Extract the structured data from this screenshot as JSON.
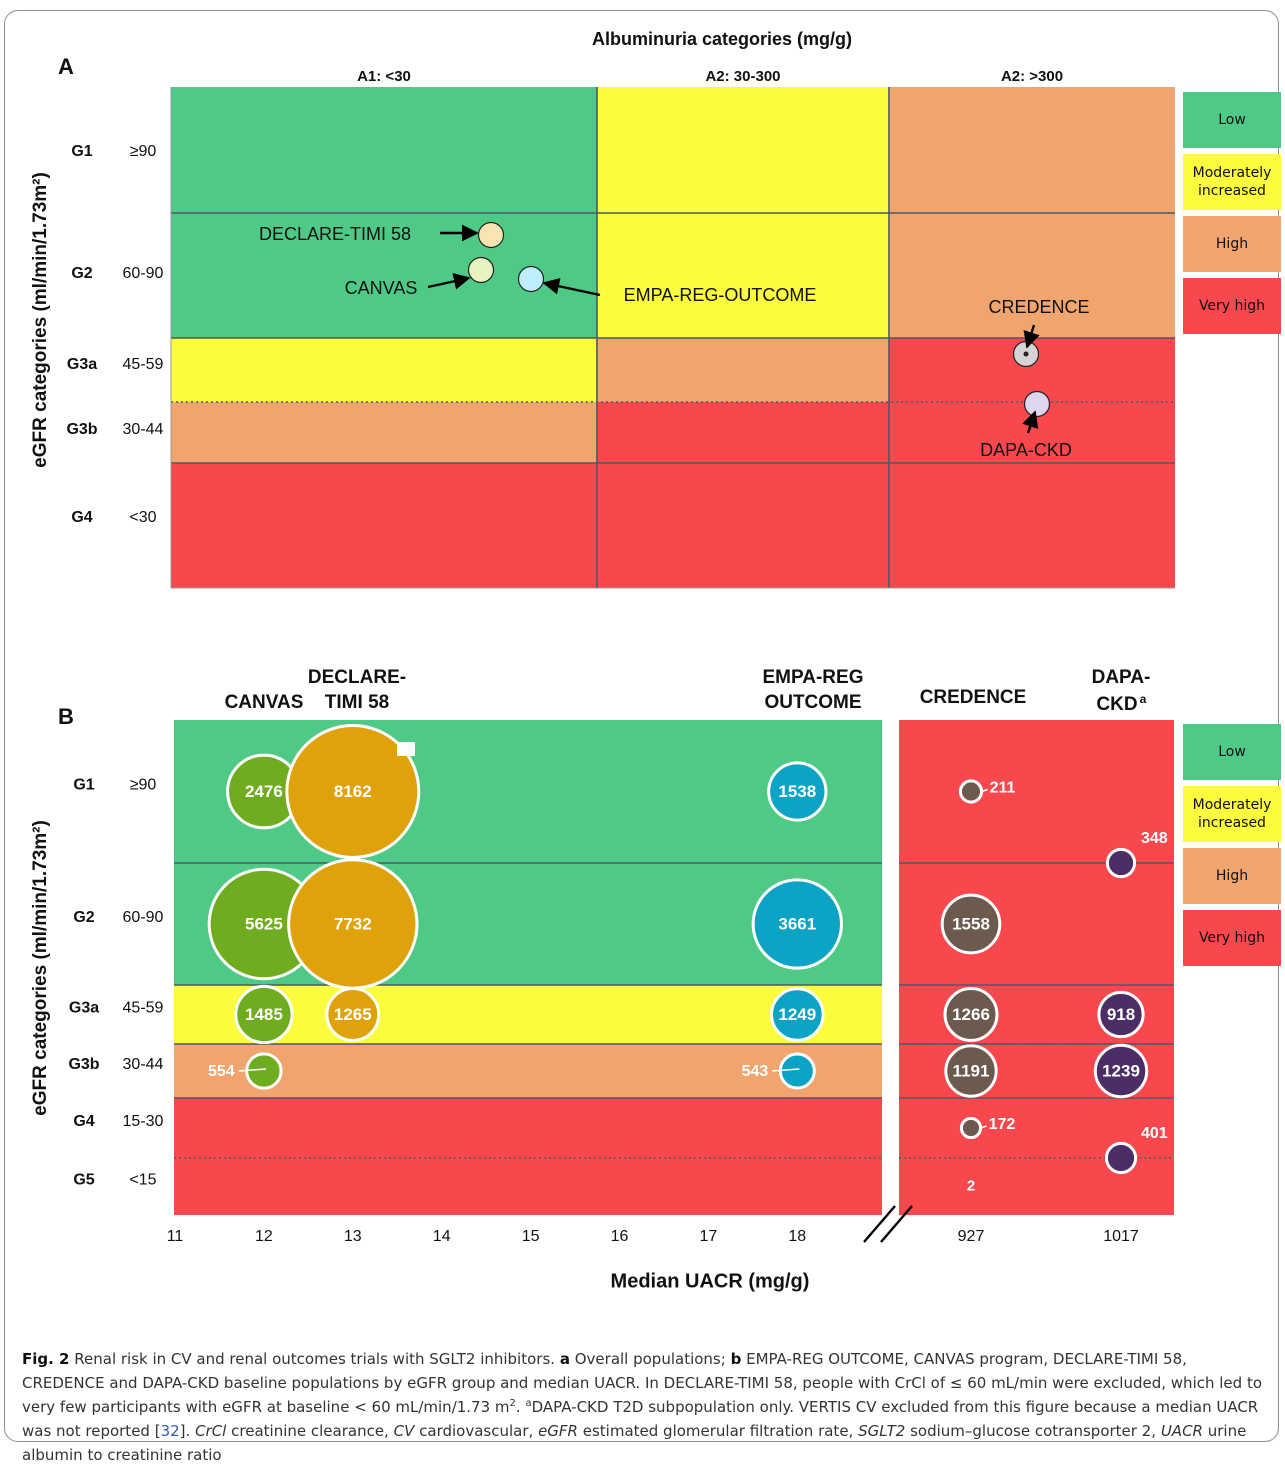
{
  "colors": {
    "low": "#4fc986",
    "moderate": "#fcfc3e",
    "high": "#f0a56e",
    "very_high": "#f8484d",
    "canvas": "#70ac1f",
    "declare": "#e0a20b",
    "empa": "#0ca3c4",
    "credence": "#6c5a4e",
    "dapa": "#4b2e66"
  },
  "legend": [
    "Low",
    "Moderately increased",
    "High",
    "Very high"
  ],
  "chart_data": [
    {
      "type": "heatmap",
      "panel_label": "A",
      "title": "Albuminuria categories (mg/g)",
      "ylabel": "eGFR categories (ml/min/1.73m²)",
      "columns": [
        "A1: <30",
        "A2: 30-300",
        "A2: >300"
      ],
      "rows": [
        {
          "code": "G1",
          "range": "≥90"
        },
        {
          "code": "G2",
          "range": "60-90"
        },
        {
          "code": "G3a",
          "range": "45-59"
        },
        {
          "code": "G3b",
          "range": "30-44"
        },
        {
          "code": "G4",
          "range": "<30"
        }
      ],
      "cell_risk": [
        [
          "low",
          "moderate",
          "high"
        ],
        [
          "low",
          "moderate",
          "high"
        ],
        [
          "moderate",
          "high",
          "very_high"
        ],
        [
          "high",
          "very_high",
          "very_high"
        ],
        [
          "very_high",
          "very_high",
          "very_high"
        ]
      ],
      "trials": [
        {
          "name": "DECLARE-TIMI 58",
          "column": "A1: <30",
          "row": "G2",
          "color": "#fbe4b4"
        },
        {
          "name": "CANVAS",
          "column": "A1: <30",
          "row": "G2",
          "color": "#e8f4c0"
        },
        {
          "name": "EMPA-REG-OUTCOME",
          "column": "A1: <30",
          "row": "G2",
          "color": "#bdeefa"
        },
        {
          "name": "CREDENCE",
          "column": "A2: >300",
          "row": "G3a",
          "color": "#d4d4d4"
        },
        {
          "name": "DAPA-CKD",
          "column": "A2: >300",
          "row": "G3b",
          "color": "#ded6ee"
        }
      ]
    },
    {
      "type": "scatter",
      "panel_label": "B",
      "xlabel": "Median UACR (mg/g)",
      "ylabel": "eGFR categories (ml/min/1.73m²)",
      "x_ticks": [
        "11",
        "12",
        "13",
        "14",
        "15",
        "16",
        "17",
        "18",
        "927",
        "1017"
      ],
      "rows": [
        {
          "code": "G1",
          "range": "≥90"
        },
        {
          "code": "G2",
          "range": "60-90"
        },
        {
          "code": "G3a",
          "range": "45-59"
        },
        {
          "code": "G3b",
          "range": "30-44"
        },
        {
          "code": "G4",
          "range": "15-30"
        },
        {
          "code": "G5",
          "range": "<15"
        }
      ],
      "series": [
        {
          "name": "CANVAS",
          "x": 12,
          "points": [
            {
              "row": "G1",
              "n": 2476
            },
            {
              "row": "G2",
              "n": 5625
            },
            {
              "row": "G3a",
              "n": 1485
            },
            {
              "row": "G3b",
              "n": 554
            }
          ]
        },
        {
          "name": "DECLARE-TIMI 58",
          "x": 13,
          "points": [
            {
              "row": "G1",
              "n": 8162
            },
            {
              "row": "G2",
              "n": 7732
            },
            {
              "row": "G3a",
              "n": 1265
            }
          ]
        },
        {
          "name": "EMPA-REG OUTCOME",
          "x": 18,
          "points": [
            {
              "row": "G1",
              "n": 1538
            },
            {
              "row": "G2",
              "n": 3661
            },
            {
              "row": "G3a",
              "n": 1249
            },
            {
              "row": "G3b",
              "n": 543
            }
          ]
        },
        {
          "name": "CREDENCE",
          "x": 927,
          "points": [
            {
              "row": "G1",
              "n": 211
            },
            {
              "row": "G2",
              "n": 1558
            },
            {
              "row": "G3a",
              "n": 1266
            },
            {
              "row": "G3b",
              "n": 1191
            },
            {
              "row": "G4",
              "n": 172
            },
            {
              "row": "G5",
              "n": 2
            }
          ]
        },
        {
          "name": "DAPA-CKDa",
          "x": 1017,
          "points": [
            {
              "row": "G1/G2",
              "n": 348
            },
            {
              "row": "G3a",
              "n": 918
            },
            {
              "row": "G3b",
              "n": 1239
            },
            {
              "row": "G4/G5",
              "n": 401
            }
          ]
        }
      ]
    }
  ],
  "caption": {
    "fig_label": "Fig. 2",
    "text1": "Renal risk in CV and renal outcomes trials with SGLT2 inhibitors.",
    "a_label": "a",
    "a_text": "Overall populations;",
    "b_label": "b",
    "b_text": "EMPA-REG OUTCOME, CANVAS program, DECLARE-TIMI 58, CREDENCE and DAPA-CKD baseline populations by eGFR group and median UACR. In DECLARE-TIMI 58, people with CrCl of ≤ 60 mL/min were excluded, which led to very few participants with eGFR at baseline < 60 mL/min/1.73 m",
    "sup2": "2",
    "after_m2": ". ",
    "sup_a": "a",
    "dapa_text": "DAPA-CKD T2D subpopulation only. VERTIS CV excluded from this figure because a median UACR was not reported [",
    "ref": "32",
    "ref_close": "].",
    "abbr": [
      {
        "term": "CrCl",
        "def": "creatinine clearance,"
      },
      {
        "term": "CV",
        "def": "cardiovascular,"
      },
      {
        "term": "eGFR",
        "def": "estimated glomerular filtration rate,"
      },
      {
        "term": "SGLT2",
        "def": "sodium–glucose cotransporter 2,"
      },
      {
        "term": "UACR",
        "def": "urine albumin to creatinine ratio"
      }
    ]
  }
}
